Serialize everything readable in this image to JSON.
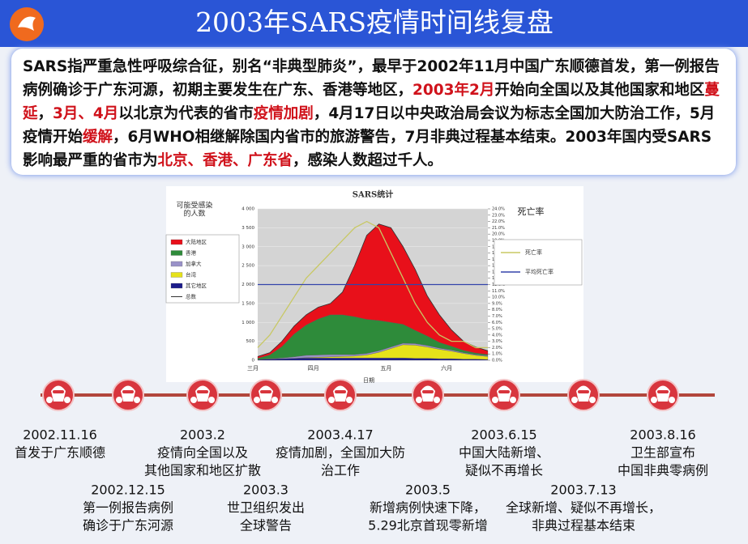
{
  "header": {
    "title": "2003年SARS疫情时间线复盘"
  },
  "summary": [
    {
      "text": "SARS指严重急性呼吸综合征，别名“非典型肺炎”，最早于2002年11月中国广东顺德首发，第一例报告病例确诊于广东河源，初期主要发生在广东、香港等地区，",
      "highlight": false
    },
    {
      "text": "2003年2月",
      "highlight": true
    },
    {
      "text": "开始向全国以及其他国家和地区",
      "highlight": false
    },
    {
      "text": "蔓延",
      "highlight": true
    },
    {
      "text": "，",
      "highlight": false
    },
    {
      "text": "3月、4月",
      "highlight": true
    },
    {
      "text": "以北京为代表的省市",
      "highlight": false
    },
    {
      "text": "疫情加剧",
      "highlight": true
    },
    {
      "text": "，4月17日以中央政治局会议为标志全国加大防治工作，5月疫情开始",
      "highlight": false
    },
    {
      "text": "缓解",
      "highlight": true
    },
    {
      "text": "，6月WHO相继解除国内省市的旅游警告，7月非典过程基本结束。2003年国内受SARS影响最严重的省市为",
      "highlight": false
    },
    {
      "text": "北京、香港、广东省",
      "highlight": true
    },
    {
      "text": "，感染人数超过千人。",
      "highlight": false
    }
  ],
  "chart_data": {
    "type": "stacked_area",
    "title": "SARS统计",
    "ylabel_lines": [
      "可能受感染",
      "的人数"
    ],
    "xlabel": "日期",
    "y2_title": "死亡率",
    "categories": [
      "三月",
      null,
      null,
      null,
      null,
      "四月",
      null,
      null,
      null,
      null,
      null,
      "五月",
      null,
      null,
      null,
      null,
      "六月",
      null,
      null,
      null
    ],
    "ylim": [
      0,
      4000
    ],
    "yticks": [
      0,
      500,
      {
        "value": 1000,
        "label": "1 000"
      },
      {
        "value": 1500,
        "label": "1 500"
      },
      {
        "value": 2000,
        "label": "2 000"
      },
      {
        "value": 2500,
        "label": "2 500"
      },
      {
        "value": 3000,
        "label": "3 000"
      },
      {
        "value": 3500,
        "label": "3 500"
      },
      {
        "value": 4000,
        "label": "4 000"
      }
    ],
    "y2lim": [
      0,
      24
    ],
    "y2ticks": [
      {
        "value": 0,
        "label": "0.0%"
      },
      {
        "value": 1,
        "label": "1.0%"
      },
      {
        "value": 2,
        "label": "2.0%"
      },
      {
        "value": 3,
        "label": "3.0%"
      },
      {
        "value": 4,
        "label": "4.0%"
      },
      {
        "value": 5,
        "label": "5.0%"
      },
      {
        "value": 6,
        "label": "6.0%"
      },
      {
        "value": 7,
        "label": "7.0%"
      },
      {
        "value": 8,
        "label": "8.0%"
      },
      {
        "value": 9,
        "label": "9.0%"
      },
      {
        "value": 10,
        "label": "10.0%"
      },
      {
        "value": 11,
        "label": "11.0%"
      },
      {
        "value": 12,
        "label": "12.0%"
      },
      {
        "value": 13,
        "label": "13.0%"
      },
      {
        "value": 14,
        "label": "14.0%"
      },
      {
        "value": 15,
        "label": "15.0%"
      },
      {
        "value": 16,
        "label": "16.0%"
      },
      {
        "value": 17,
        "label": "17.0%"
      },
      {
        "value": 18,
        "label": "18.0%"
      },
      {
        "value": 19,
        "label": "19.0%"
      },
      {
        "value": 20,
        "label": "20.0%"
      },
      {
        "value": 21,
        "label": "21.0%"
      },
      {
        "value": 22,
        "label": "22.0%"
      },
      {
        "value": 23,
        "label": "23.0%"
      },
      {
        "value": 24,
        "label": "24.0%"
      }
    ],
    "series": [
      {
        "name": "大陆地区",
        "color": "#e8101a",
        "values": [
          50,
          60,
          140,
          210,
          270,
          310,
          300,
          600,
          1350,
          2220,
          2550,
          2500,
          2050,
          1610,
          1060,
          730,
          430,
          240,
          160,
          100
        ]
      },
      {
        "name": "香港",
        "color": "#2e8b3a",
        "values": [
          30,
          100,
          300,
          600,
          800,
          950,
          1050,
          1050,
          1000,
          900,
          800,
          650,
          500,
          350,
          250,
          150,
          100,
          60,
          40,
          30
        ]
      },
      {
        "name": "加拿大",
        "color": "#9a92c8",
        "values": [
          0,
          10,
          20,
          40,
          60,
          60,
          60,
          50,
          40,
          40,
          40,
          40,
          40,
          40,
          40,
          30,
          30,
          20,
          20,
          20
        ]
      },
      {
        "name": "台湾",
        "color": "#e6e21a",
        "values": [
          0,
          0,
          0,
          0,
          10,
          20,
          30,
          40,
          50,
          80,
          150,
          250,
          350,
          350,
          300,
          250,
          200,
          150,
          100,
          80
        ]
      },
      {
        "name": "其它地区",
        "color": "#1c1c8a",
        "values": [
          20,
          30,
          40,
          50,
          60,
          60,
          60,
          60,
          60,
          60,
          60,
          60,
          60,
          50,
          50,
          40,
          40,
          30,
          30,
          20
        ]
      },
      {
        "name": "总数",
        "color": "#333333",
        "line": true,
        "values": [
          100,
          200,
          500,
          900,
          1200,
          1400,
          1500,
          1800,
          2500,
          3300,
          3600,
          3500,
          3000,
          2400,
          1700,
          1200,
          800,
          500,
          350,
          250
        ]
      },
      {
        "name": "死亡率",
        "color": "#c8c864",
        "axis": "y2",
        "values": [
          2,
          4,
          7,
          10,
          13,
          15,
          17,
          19,
          21,
          22,
          21,
          17,
          13,
          9,
          6,
          4,
          3,
          3,
          2,
          2
        ]
      },
      {
        "name": "平均死亡率",
        "color": "#3344aa",
        "axis": "y2",
        "values": [
          12,
          12,
          12,
          12,
          12,
          12,
          12,
          12,
          12,
          12,
          12,
          12,
          12,
          12,
          12,
          12,
          12,
          12,
          12,
          12
        ]
      }
    ]
  },
  "timeline": [
    {
      "date": "2002.11.16",
      "lines": [
        "首发于广东顺德"
      ]
    },
    {
      "date": "2002.12.15",
      "lines": [
        "第一例报告病例",
        "确诊于广东河源"
      ]
    },
    {
      "date": "2003.2",
      "lines": [
        "疫情向全国以及",
        "其他国家和地区扩散"
      ]
    },
    {
      "date": "2003.3",
      "lines": [
        "世卫组织发出",
        "全球警告"
      ]
    },
    {
      "date": "2003.4.17",
      "lines": [
        "疫情加剧，全国加大防",
        "治工作"
      ]
    },
    {
      "date": "2003.5",
      "lines": [
        "新增病例快速下降，",
        "5.29北京首现零新增"
      ]
    },
    {
      "date": "2003.6.15",
      "lines": [
        "中国大陆新增、",
        "疑似不再增长"
      ]
    },
    {
      "date": "2003.7.13",
      "lines": [
        "全球新增、疑似不再增长，",
        "非典过程基本结束"
      ]
    },
    {
      "date": "2003.8.16",
      "lines": [
        "卫生部宣布",
        "中国非典零病例"
      ]
    }
  ]
}
